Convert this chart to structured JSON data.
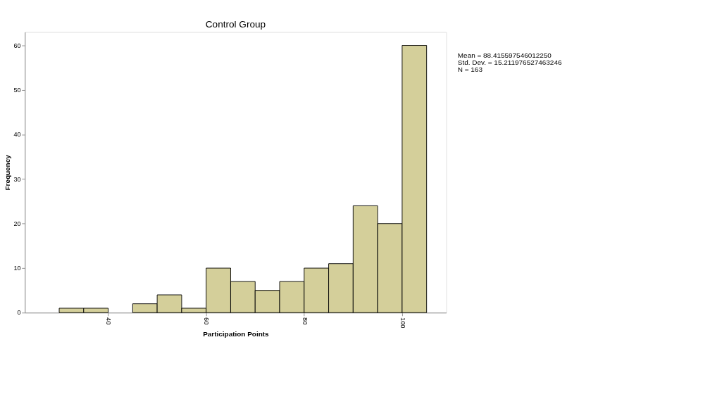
{
  "chart_data": {
    "type": "histogram",
    "title": "Control Group",
    "xlabel": "Participation Points",
    "ylabel": "Frequency",
    "bins": [
      30,
      35,
      40,
      45,
      50,
      55,
      60,
      65,
      70,
      75,
      80,
      85,
      90,
      95,
      100,
      105
    ],
    "values": [
      1,
      1,
      0,
      2,
      4,
      1,
      10,
      7,
      5,
      7,
      10,
      11,
      24,
      20,
      60
    ],
    "color": "#d4cf9a",
    "xlim": [
      23,
      109
    ],
    "xticks": [
      40,
      60,
      80,
      100
    ],
    "ylim": [
      0,
      63
    ],
    "yticks": [
      0,
      10,
      20,
      30,
      40,
      50,
      60
    ],
    "grid": false,
    "annotations": [
      "Mean = 88.415597546012250",
      "Std. Dev. = 15.211976527463246",
      "N = 163"
    ]
  }
}
